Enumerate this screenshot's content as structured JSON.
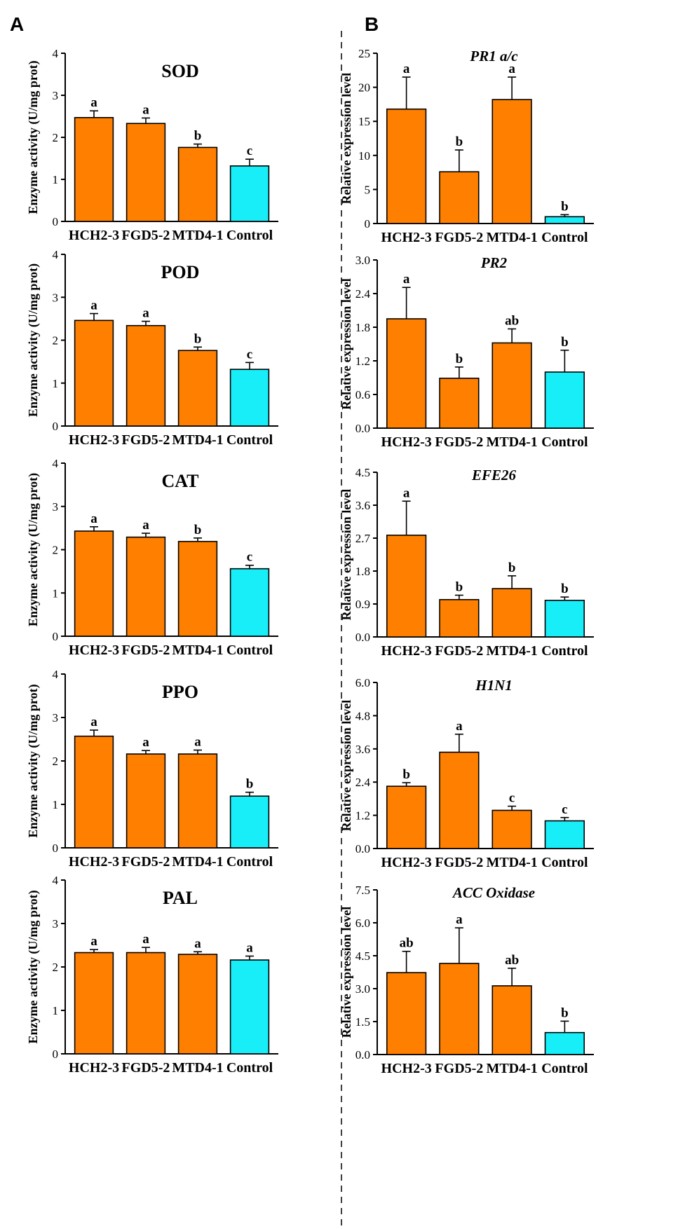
{
  "panels": {
    "A": "A",
    "B": "B"
  },
  "colors": {
    "treatment": "#FF7F00",
    "control": "#18EEF8"
  },
  "chart_data": [
    {
      "id": "sod",
      "type": "bar",
      "column": "A",
      "title": "SOD",
      "title_style": "bold",
      "ylabel": "Enzyme activity (U/mg prot)",
      "ylim": [
        0,
        4
      ],
      "yticks": [
        "0",
        "1",
        "2",
        "3",
        "4"
      ],
      "ytick_values": [
        0,
        1,
        2,
        3,
        4
      ],
      "categories": [
        "HCH2-3",
        "FGD5-2",
        "MTD4-1",
        "Control"
      ],
      "values": [
        2.47,
        2.33,
        1.76,
        1.32
      ],
      "errors": [
        0.16,
        0.13,
        0.08,
        0.16
      ],
      "letters": [
        "a",
        "a",
        "b",
        "c"
      ]
    },
    {
      "id": "pod",
      "type": "bar",
      "column": "A",
      "title": "POD",
      "title_style": "bold",
      "ylabel": "Enzyme activity (U/mg prot)",
      "ylim": [
        0,
        4
      ],
      "yticks": [
        "0",
        "1",
        "2",
        "3",
        "4"
      ],
      "ytick_values": [
        0,
        1,
        2,
        3,
        4
      ],
      "categories": [
        "HCH2-3",
        "FGD5-2",
        "MTD4-1",
        "Control"
      ],
      "values": [
        2.46,
        2.34,
        1.76,
        1.32
      ],
      "errors": [
        0.16,
        0.1,
        0.08,
        0.16
      ],
      "letters": [
        "a",
        "a",
        "b",
        "c"
      ]
    },
    {
      "id": "cat",
      "type": "bar",
      "column": "A",
      "title": "CAT",
      "title_style": "bold",
      "ylabel": "Enzyme activity (U/mg prot)",
      "ylim": [
        0,
        4
      ],
      "yticks": [
        "0",
        "1",
        "2",
        "3",
        "4"
      ],
      "ytick_values": [
        0,
        1,
        2,
        3,
        4
      ],
      "categories": [
        "HCH2-3",
        "FGD5-2",
        "MTD4-1",
        "Control"
      ],
      "values": [
        2.43,
        2.29,
        2.19,
        1.56
      ],
      "errors": [
        0.1,
        0.09,
        0.08,
        0.08
      ],
      "letters": [
        "a",
        "a",
        "b",
        "c"
      ]
    },
    {
      "id": "ppo",
      "type": "bar",
      "column": "A",
      "title": "PPO",
      "title_style": "bold",
      "ylabel": "Enzyme activity (U/mg prot)",
      "ylim": [
        0,
        4
      ],
      "yticks": [
        "0",
        "1",
        "2",
        "3",
        "4"
      ],
      "ytick_values": [
        0,
        1,
        2,
        3,
        4
      ],
      "categories": [
        "HCH2-3",
        "FGD5-2",
        "MTD4-1",
        "Control"
      ],
      "values": [
        2.57,
        2.16,
        2.16,
        1.19
      ],
      "errors": [
        0.14,
        0.08,
        0.09,
        0.09
      ],
      "letters": [
        "a",
        "a",
        "a",
        "b"
      ]
    },
    {
      "id": "pal",
      "type": "bar",
      "column": "A",
      "title": "PAL",
      "title_style": "bold",
      "ylabel": "Enzyme activity (U/mg prot)",
      "ylim": [
        0,
        4
      ],
      "yticks": [
        "0",
        "1",
        "2",
        "3",
        "4"
      ],
      "ytick_values": [
        0,
        1,
        2,
        3,
        4
      ],
      "categories": [
        "HCH2-3",
        "FGD5-2",
        "MTD4-1",
        "Control"
      ],
      "values": [
        2.33,
        2.33,
        2.29,
        2.16
      ],
      "errors": [
        0.07,
        0.12,
        0.06,
        0.09
      ],
      "letters": [
        "a",
        "a",
        "a",
        "a"
      ]
    },
    {
      "id": "pr1",
      "type": "bar",
      "column": "B",
      "title": "PR1 a/c",
      "title_style": "italic",
      "ylabel": "Relative expression level",
      "ylim": [
        0,
        25
      ],
      "yticks": [
        "0",
        "5",
        "10",
        "15",
        "20",
        "25"
      ],
      "ytick_values": [
        0,
        5,
        10,
        15,
        20,
        25
      ],
      "categories": [
        "HCH2-3",
        "FGD5-2",
        "MTD4-1",
        "Control"
      ],
      "values": [
        16.8,
        7.6,
        18.2,
        1.0
      ],
      "errors": [
        4.7,
        3.2,
        3.3,
        0.3
      ],
      "letters": [
        "a",
        "b",
        "a",
        "b"
      ]
    },
    {
      "id": "pr2",
      "type": "bar",
      "column": "B",
      "title": "PR2",
      "title_style": "italic",
      "ylabel": "Relative expression level",
      "ylim": [
        0,
        3.0
      ],
      "yticks": [
        "0.0",
        "0.6",
        "1.2",
        "1.8",
        "2.4",
        "3.0"
      ],
      "ytick_values": [
        0,
        0.6,
        1.2,
        1.8,
        2.4,
        3.0
      ],
      "categories": [
        "HCH2-3",
        "FGD5-2",
        "MTD4-1",
        "Control"
      ],
      "values": [
        1.95,
        0.89,
        1.52,
        1.0
      ],
      "errors": [
        0.56,
        0.2,
        0.25,
        0.39
      ],
      "letters": [
        "a",
        "b",
        "ab",
        "b"
      ]
    },
    {
      "id": "efe26",
      "type": "bar",
      "column": "B",
      "title": "EFE26",
      "title_style": "italic",
      "ylabel": "Relative expression level",
      "ylim": [
        0,
        4.5
      ],
      "yticks": [
        "0.0",
        "0.9",
        "1.8",
        "2.7",
        "3.6",
        "4.5"
      ],
      "ytick_values": [
        0,
        0.9,
        1.8,
        2.7,
        3.6,
        4.5
      ],
      "categories": [
        "HCH2-3",
        "FGD5-2",
        "MTD4-1",
        "Control"
      ],
      "values": [
        2.78,
        1.02,
        1.32,
        1.0
      ],
      "errors": [
        0.93,
        0.12,
        0.35,
        0.09
      ],
      "letters": [
        "a",
        "b",
        "b",
        "b"
      ]
    },
    {
      "id": "h1n1",
      "type": "bar",
      "column": "B",
      "title": "H1N1",
      "title_style": "italic",
      "ylabel": "Relative expression level",
      "ylim": [
        0,
        6.0
      ],
      "yticks": [
        "0.0",
        "1.2",
        "2.4",
        "3.6",
        "4.8",
        "6.0"
      ],
      "ytick_values": [
        0,
        1.2,
        2.4,
        3.6,
        4.8,
        6.0
      ],
      "categories": [
        "HCH2-3",
        "FGD5-2",
        "MTD4-1",
        "Control"
      ],
      "values": [
        2.25,
        3.48,
        1.38,
        1.0
      ],
      "errors": [
        0.13,
        0.65,
        0.15,
        0.12
      ],
      "letters": [
        "b",
        "a",
        "c",
        "c"
      ]
    },
    {
      "id": "acc",
      "type": "bar",
      "column": "B",
      "title": "ACC Oxidase",
      "title_style": "italic",
      "ylabel": "Relative expression level",
      "ylim": [
        0,
        7.5
      ],
      "yticks": [
        "0.0",
        "1.5",
        "3.0",
        "4.5",
        "6.0",
        "7.5"
      ],
      "ytick_values": [
        0,
        1.5,
        3.0,
        4.5,
        6.0,
        7.5
      ],
      "categories": [
        "HCH2-3",
        "FGD5-2",
        "MTD4-1",
        "Control"
      ],
      "values": [
        3.73,
        4.15,
        3.13,
        1.0
      ],
      "errors": [
        0.97,
        1.62,
        0.8,
        0.52
      ],
      "letters": [
        "ab",
        "a",
        "ab",
        "b"
      ]
    }
  ]
}
